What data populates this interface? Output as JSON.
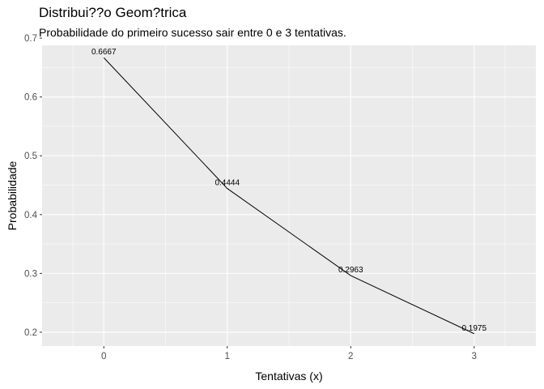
{
  "chart_data": {
    "type": "line",
    "title": "Distribui??o Geom?trica",
    "subtitle": "Probabilidade do primeiro sucesso sair entre 0 e 3 tentativas.",
    "xlabel": "Tentativas (x)",
    "ylabel": "Probabilidade",
    "x": [
      0,
      1,
      2,
      3
    ],
    "values": [
      0.6667,
      0.4444,
      0.2963,
      0.1975
    ],
    "data_labels": [
      "0.6667",
      "0.4444",
      "0.2963",
      "0.1975"
    ],
    "x_ticks": [
      0,
      1,
      2,
      3
    ],
    "x_tick_labels": [
      "0",
      "1",
      "2",
      "3"
    ],
    "y_ticks": [
      0.2,
      0.3,
      0.4,
      0.5,
      0.6,
      0.7
    ],
    "y_tick_labels": [
      "0.2",
      "0.3",
      "0.4",
      "0.5",
      "0.6",
      "0.7"
    ],
    "xlim": [
      -0.5,
      3.5
    ],
    "ylim": [
      0.1765,
      0.6877
    ],
    "grid": true,
    "legend": "none",
    "colors": {
      "panel": "#ebebeb",
      "grid_major": "#ffffff",
      "line": "#000000",
      "tick_text": "#4d4d4d"
    }
  }
}
